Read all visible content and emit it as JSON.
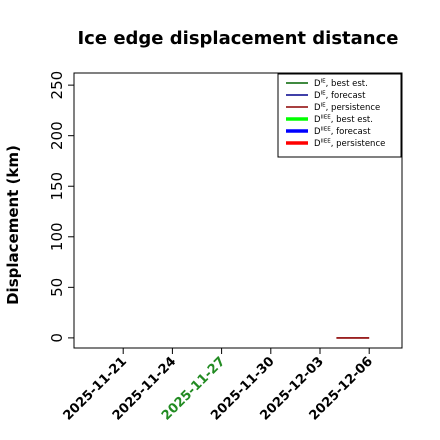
{
  "chart_data": {
    "type": "line",
    "title": "Ice edge displacement distance",
    "ylabel": "Displacement (km)",
    "xlabel": "",
    "ylim": [
      -10,
      262
    ],
    "xlim": [
      "2025-11-18",
      "2025-12-08"
    ],
    "yticks": [
      0,
      50,
      100,
      150,
      200,
      250
    ],
    "xticks": [
      {
        "date": "2025-11-21",
        "label": "2025-11-21",
        "color": "#000000"
      },
      {
        "date": "2025-11-24",
        "label": "2025-11-24",
        "color": "#000000"
      },
      {
        "date": "2025-11-27",
        "label": "2025-11-27",
        "color": "#228B22"
      },
      {
        "date": "2025-11-30",
        "label": "2025-11-30",
        "color": "#000000"
      },
      {
        "date": "2025-12-03",
        "label": "2025-12-03",
        "color": "#000000"
      },
      {
        "date": "2025-12-06",
        "label": "2025-12-06",
        "color": "#000000"
      }
    ],
    "legend_position": "top-right",
    "grid": false,
    "series": [
      {
        "name": "D^IE, best est.",
        "base": "D",
        "sup": "IE",
        "suffix": ", best est.",
        "color": "#006400",
        "thick": false,
        "points": []
      },
      {
        "name": "D^IE, forecast",
        "base": "D",
        "sup": "IE",
        "suffix": ", forecast",
        "color": "#00008B",
        "thick": false,
        "points": []
      },
      {
        "name": "D^IE, persistence",
        "base": "D",
        "sup": "IE",
        "suffix": ", persistence",
        "color": "#8B0000",
        "thick": false,
        "points": [
          [
            "2025-12-04",
            0
          ],
          [
            "2025-12-06",
            0
          ]
        ]
      },
      {
        "name": "D^IIEE, best est.",
        "base": "D",
        "sup": "IIEE",
        "suffix": ", best est.",
        "color": "#00FF00",
        "thick": true,
        "points": []
      },
      {
        "name": "D^IIEE, forecast",
        "base": "D",
        "sup": "IIEE",
        "suffix": ", forecast",
        "color": "#0000FF",
        "thick": true,
        "points": []
      },
      {
        "name": "D^IIEE, persistence",
        "base": "D",
        "sup": "IIEE",
        "suffix": ", persistence",
        "color": "#FF0000",
        "thick": true,
        "points": []
      }
    ]
  }
}
